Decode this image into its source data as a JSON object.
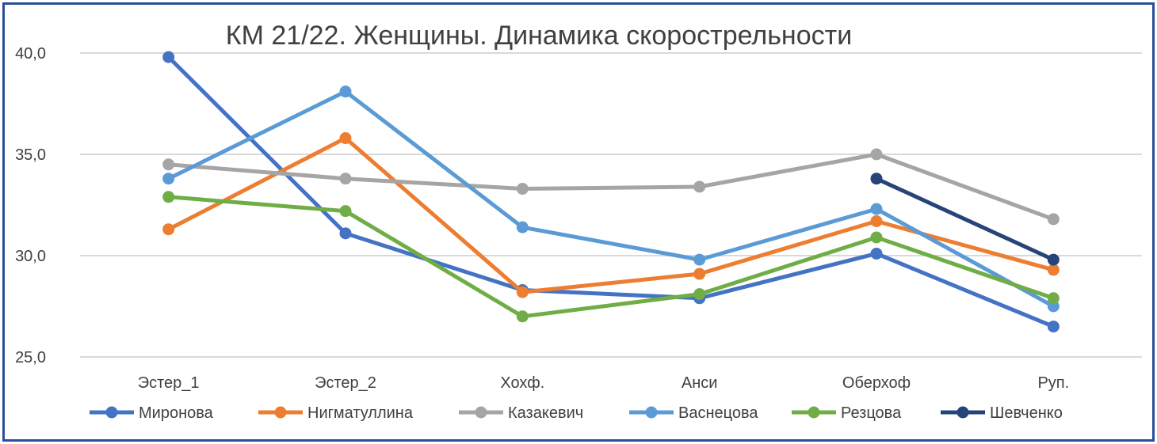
{
  "chart_data": {
    "type": "line",
    "title": "КМ 21/22. Женщины. Динамика скорострельности",
    "xlabel": "",
    "ylabel": "",
    "categories": [
      "Эстер_1",
      "Эстер_2",
      "Хохф.",
      "Анси",
      "Оберхоф",
      "Руп."
    ],
    "ylim": [
      25,
      40
    ],
    "yticks": [
      25,
      30,
      35,
      40
    ],
    "ytick_labels": [
      "25,0",
      "30,0",
      "35,0",
      "40,0"
    ],
    "grid": true,
    "legend_position": "bottom",
    "series": [
      {
        "name": "Миронова",
        "color": "#4472c4",
        "values": [
          39.8,
          31.1,
          28.3,
          27.9,
          30.1,
          26.5
        ]
      },
      {
        "name": "Нигматуллина",
        "color": "#ed7d31",
        "values": [
          31.3,
          35.8,
          28.2,
          29.1,
          31.7,
          29.3
        ]
      },
      {
        "name": "Казакевич",
        "color": "#a5a5a5",
        "values": [
          34.5,
          33.8,
          33.3,
          33.4,
          35.0,
          31.8
        ]
      },
      {
        "name": "Васнецова",
        "color": "#5b9bd5",
        "values": [
          33.8,
          38.1,
          31.4,
          29.8,
          32.3,
          27.5
        ]
      },
      {
        "name": "Резцова",
        "color": "#70ad47",
        "values": [
          32.9,
          32.2,
          27.0,
          28.1,
          30.9,
          27.9
        ]
      },
      {
        "name": "Шевченко",
        "color": "#264478",
        "values": [
          null,
          null,
          null,
          null,
          33.8,
          29.8
        ]
      }
    ]
  }
}
